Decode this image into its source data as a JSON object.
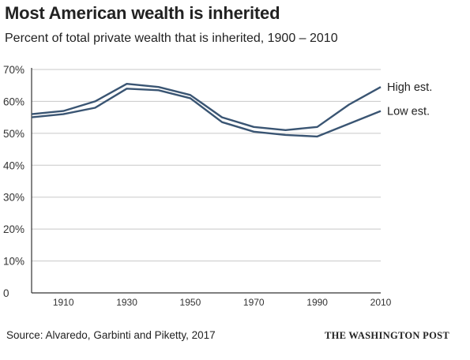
{
  "header": {
    "title": "Most American wealth is inherited",
    "subtitle": "Percent of total private wealth that is inherited, 1900 – 2010"
  },
  "footer": {
    "source": "Source: Alvaredo, Garbinti and Piketty, 2017",
    "credit": "THE WASHINGTON POST"
  },
  "chart_data": {
    "type": "line",
    "title": "Most American wealth is inherited",
    "subtitle": "Percent of total private wealth that is inherited, 1900 – 2010",
    "xlabel": "",
    "ylabel": "",
    "x": [
      1900,
      1910,
      1920,
      1930,
      1940,
      1950,
      1960,
      1970,
      1980,
      1990,
      2000,
      2010
    ],
    "x_ticks": [
      "1910",
      "1930",
      "1950",
      "1970",
      "1990",
      "2010"
    ],
    "x_tick_values": [
      1910,
      1930,
      1950,
      1970,
      1990,
      2010
    ],
    "y_ticks": [
      "0",
      "10%",
      "20%",
      "30%",
      "40%",
      "50%",
      "60%",
      "70%"
    ],
    "y_tick_values": [
      0,
      10,
      20,
      30,
      40,
      50,
      60,
      70
    ],
    "xlim": [
      1900,
      2010
    ],
    "ylim": [
      0,
      70
    ],
    "grid": "horizontal",
    "line_color": "#3a5573",
    "series": [
      {
        "name": "High est.",
        "values": [
          56,
          57,
          60,
          65.5,
          64.5,
          62,
          55,
          52,
          51,
          52,
          59,
          64.5
        ]
      },
      {
        "name": "Low est.",
        "values": [
          55,
          56,
          58,
          64,
          63.5,
          61,
          53.5,
          50.5,
          49.5,
          49,
          53,
          57
        ]
      }
    ]
  }
}
